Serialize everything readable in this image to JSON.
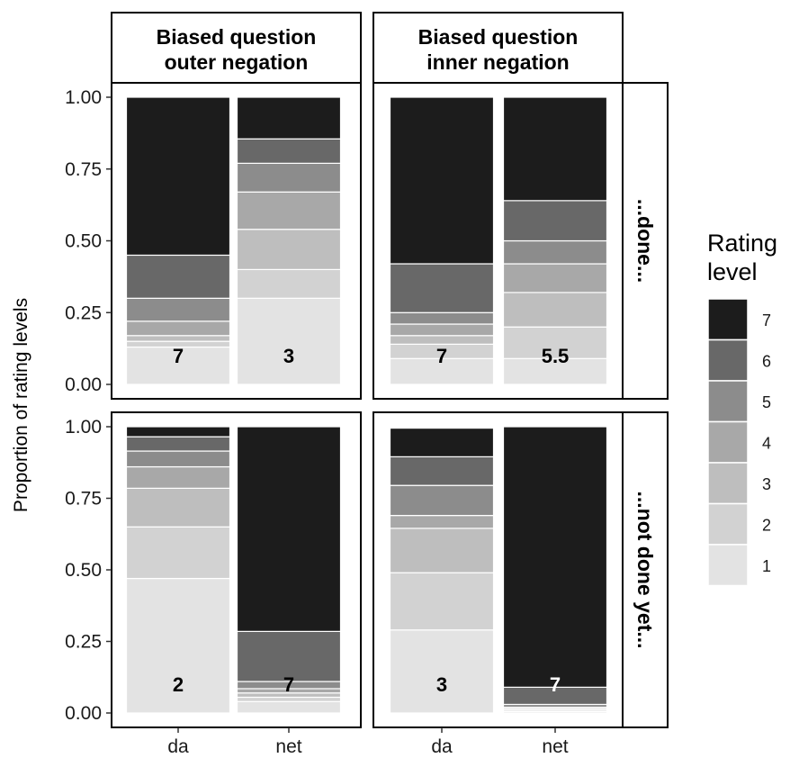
{
  "chart_data": {
    "type": "bar",
    "stacked": true,
    "normalized": true,
    "ylabel": "Proportion of rating levels",
    "xlabel": "",
    "ylim": [
      0,
      1
    ],
    "y_ticks": [
      "0.00",
      "0.25",
      "0.50",
      "0.75",
      "1.00"
    ],
    "categories": [
      "da",
      "net"
    ],
    "col_facets": [
      "Biased question\nouter negation",
      "Biased question\ninner negation"
    ],
    "row_facets": [
      "...done...",
      "...not done yet..."
    ],
    "legend": {
      "title": "Rating\nlevel",
      "placement": "right",
      "levels": [
        "7",
        "6",
        "5",
        "4",
        "3",
        "2",
        "1"
      ]
    },
    "level_colors": {
      "1": "#e3e3e3",
      "2": "#d2d2d2",
      "3": "#bebebe",
      "4": "#a8a8a8",
      "5": "#8c8c8c",
      "6": "#686868",
      "7": "#1c1c1c"
    },
    "panels": [
      {
        "row": 0,
        "col": 0,
        "bars": [
          {
            "category": "da",
            "proportions": {
              "1": 0.13,
              "2": 0.02,
              "3": 0.02,
              "4": 0.05,
              "5": 0.08,
              "6": 0.15,
              "7": 0.55
            },
            "median": "7"
          },
          {
            "category": "net",
            "proportions": {
              "1": 0.3,
              "2": 0.1,
              "3": 0.14,
              "4": 0.13,
              "5": 0.1,
              "6": 0.085,
              "7": 0.145
            },
            "median": "3"
          }
        ]
      },
      {
        "row": 0,
        "col": 1,
        "bars": [
          {
            "category": "da",
            "proportions": {
              "1": 0.09,
              "2": 0.05,
              "3": 0.03,
              "4": 0.04,
              "5": 0.04,
              "6": 0.17,
              "7": 0.58
            },
            "median": "7"
          },
          {
            "category": "net",
            "proportions": {
              "1": 0.09,
              "2": 0.11,
              "3": 0.12,
              "4": 0.1,
              "5": 0.08,
              "6": 0.14,
              "7": 0.36
            },
            "median": "5.5"
          }
        ]
      },
      {
        "row": 1,
        "col": 0,
        "bars": [
          {
            "category": "da",
            "proportions": {
              "1": 0.47,
              "2": 0.18,
              "3": 0.135,
              "4": 0.075,
              "5": 0.055,
              "6": 0.05,
              "7": 0.035
            },
            "median": "2"
          },
          {
            "category": "net",
            "proportions": {
              "1": 0.04,
              "2": 0.015,
              "3": 0.015,
              "4": 0.015,
              "5": 0.025,
              "6": 0.175,
              "7": 0.715
            },
            "median": "7"
          }
        ]
      },
      {
        "row": 1,
        "col": 1,
        "bars": [
          {
            "category": "da",
            "proportions": {
              "1": 0.29,
              "2": 0.2,
              "3": 0.155,
              "4": 0.045,
              "5": 0.105,
              "6": 0.1,
              "7": 0.1
            },
            "median": "3"
          },
          {
            "category": "net",
            "proportions": {
              "1": 0.005,
              "2": 0.005,
              "3": 0.005,
              "4": 0.005,
              "5": 0.01,
              "6": 0.06,
              "7": 0.91
            },
            "median": "7"
          }
        ]
      }
    ]
  }
}
